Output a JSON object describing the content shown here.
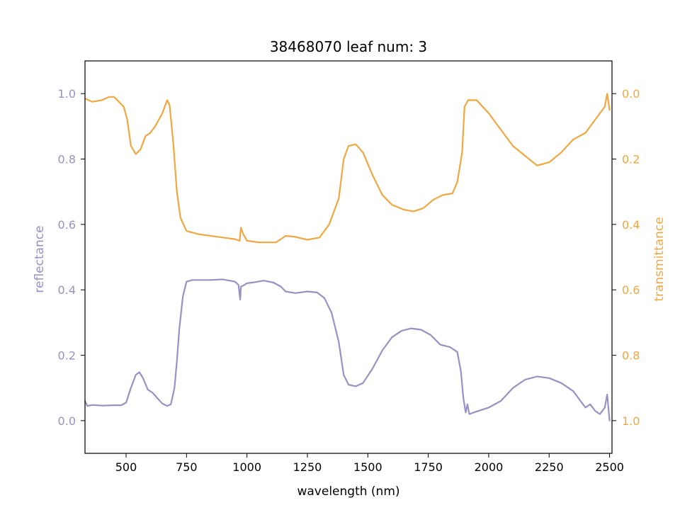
{
  "chart_data": {
    "type": "line",
    "title": "38468070 leaf num: 3",
    "xlabel": "wavelength (nm)",
    "ylabel_left": "reflectance",
    "ylabel_right": "transmittance",
    "xlim": [
      330,
      2510
    ],
    "ylim_left": [
      -0.1,
      1.1
    ],
    "ylim_right": [
      1.1,
      -0.1
    ],
    "right_axis_inverted": true,
    "x_ticks": [
      500,
      750,
      1000,
      1250,
      1500,
      1750,
      2000,
      2250,
      2500
    ],
    "left_ticks": [
      0.0,
      0.2,
      0.4,
      0.6,
      0.8,
      1.0
    ],
    "right_ticks": [
      0.0,
      0.2,
      0.4,
      0.6,
      0.8,
      1.0
    ],
    "grid": false,
    "colors": {
      "reflectance": "#9990c4",
      "transmittance": "#f0a742",
      "axes": "#000000"
    },
    "series": [
      {
        "name": "reflectance",
        "axis": "left",
        "points": [
          [
            330,
            0.06
          ],
          [
            340,
            0.045
          ],
          [
            360,
            0.048
          ],
          [
            400,
            0.046
          ],
          [
            450,
            0.047
          ],
          [
            480,
            0.047
          ],
          [
            500,
            0.055
          ],
          [
            520,
            0.1
          ],
          [
            540,
            0.14
          ],
          [
            555,
            0.148
          ],
          [
            570,
            0.13
          ],
          [
            590,
            0.095
          ],
          [
            610,
            0.085
          ],
          [
            630,
            0.068
          ],
          [
            650,
            0.052
          ],
          [
            670,
            0.045
          ],
          [
            685,
            0.05
          ],
          [
            700,
            0.1
          ],
          [
            710,
            0.18
          ],
          [
            720,
            0.28
          ],
          [
            735,
            0.38
          ],
          [
            750,
            0.425
          ],
          [
            775,
            0.43
          ],
          [
            850,
            0.43
          ],
          [
            900,
            0.432
          ],
          [
            950,
            0.425
          ],
          [
            965,
            0.415
          ],
          [
            972,
            0.37
          ],
          [
            975,
            0.41
          ],
          [
            990,
            0.415
          ],
          [
            1000,
            0.42
          ],
          [
            1030,
            0.423
          ],
          [
            1070,
            0.428
          ],
          [
            1110,
            0.422
          ],
          [
            1140,
            0.41
          ],
          [
            1160,
            0.395
          ],
          [
            1200,
            0.39
          ],
          [
            1250,
            0.395
          ],
          [
            1290,
            0.392
          ],
          [
            1320,
            0.375
          ],
          [
            1350,
            0.33
          ],
          [
            1380,
            0.24
          ],
          [
            1400,
            0.14
          ],
          [
            1420,
            0.11
          ],
          [
            1450,
            0.105
          ],
          [
            1480,
            0.115
          ],
          [
            1520,
            0.16
          ],
          [
            1560,
            0.215
          ],
          [
            1600,
            0.255
          ],
          [
            1640,
            0.275
          ],
          [
            1680,
            0.282
          ],
          [
            1720,
            0.278
          ],
          [
            1760,
            0.262
          ],
          [
            1800,
            0.232
          ],
          [
            1840,
            0.225
          ],
          [
            1870,
            0.21
          ],
          [
            1885,
            0.15
          ],
          [
            1895,
            0.07
          ],
          [
            1905,
            0.025
          ],
          [
            1912,
            0.05
          ],
          [
            1920,
            0.02
          ],
          [
            1950,
            0.028
          ],
          [
            2000,
            0.04
          ],
          [
            2050,
            0.06
          ],
          [
            2100,
            0.1
          ],
          [
            2150,
            0.125
          ],
          [
            2200,
            0.135
          ],
          [
            2250,
            0.13
          ],
          [
            2300,
            0.115
          ],
          [
            2350,
            0.09
          ],
          [
            2380,
            0.06
          ],
          [
            2400,
            0.04
          ],
          [
            2420,
            0.05
          ],
          [
            2440,
            0.03
          ],
          [
            2460,
            0.02
          ],
          [
            2480,
            0.04
          ],
          [
            2490,
            0.08
          ],
          [
            2500,
            0.0
          ]
        ]
      },
      {
        "name": "transmittance",
        "axis": "right",
        "points": [
          [
            330,
            0.015
          ],
          [
            360,
            0.025
          ],
          [
            400,
            0.02
          ],
          [
            430,
            0.01
          ],
          [
            450,
            0.01
          ],
          [
            470,
            0.025
          ],
          [
            490,
            0.04
          ],
          [
            505,
            0.08
          ],
          [
            520,
            0.16
          ],
          [
            540,
            0.185
          ],
          [
            560,
            0.17
          ],
          [
            580,
            0.13
          ],
          [
            600,
            0.12
          ],
          [
            620,
            0.1
          ],
          [
            650,
            0.06
          ],
          [
            670,
            0.02
          ],
          [
            680,
            0.035
          ],
          [
            695,
            0.15
          ],
          [
            710,
            0.3
          ],
          [
            725,
            0.38
          ],
          [
            750,
            0.42
          ],
          [
            800,
            0.43
          ],
          [
            900,
            0.44
          ],
          [
            950,
            0.445
          ],
          [
            970,
            0.45
          ],
          [
            975,
            0.41
          ],
          [
            985,
            0.43
          ],
          [
            1000,
            0.45
          ],
          [
            1050,
            0.455
          ],
          [
            1120,
            0.455
          ],
          [
            1160,
            0.435
          ],
          [
            1200,
            0.438
          ],
          [
            1250,
            0.447
          ],
          [
            1300,
            0.44
          ],
          [
            1340,
            0.4
          ],
          [
            1380,
            0.32
          ],
          [
            1400,
            0.2
          ],
          [
            1420,
            0.16
          ],
          [
            1450,
            0.155
          ],
          [
            1480,
            0.18
          ],
          [
            1520,
            0.25
          ],
          [
            1560,
            0.31
          ],
          [
            1600,
            0.34
          ],
          [
            1650,
            0.355
          ],
          [
            1690,
            0.36
          ],
          [
            1730,
            0.35
          ],
          [
            1770,
            0.325
          ],
          [
            1810,
            0.31
          ],
          [
            1850,
            0.305
          ],
          [
            1870,
            0.27
          ],
          [
            1890,
            0.18
          ],
          [
            1900,
            0.04
          ],
          [
            1915,
            0.02
          ],
          [
            1950,
            0.02
          ],
          [
            2000,
            0.06
          ],
          [
            2050,
            0.11
          ],
          [
            2100,
            0.16
          ],
          [
            2150,
            0.19
          ],
          [
            2200,
            0.22
          ],
          [
            2250,
            0.21
          ],
          [
            2300,
            0.18
          ],
          [
            2350,
            0.14
          ],
          [
            2400,
            0.12
          ],
          [
            2450,
            0.07
          ],
          [
            2480,
            0.04
          ],
          [
            2490,
            0.0
          ],
          [
            2500,
            0.05
          ]
        ]
      }
    ]
  }
}
